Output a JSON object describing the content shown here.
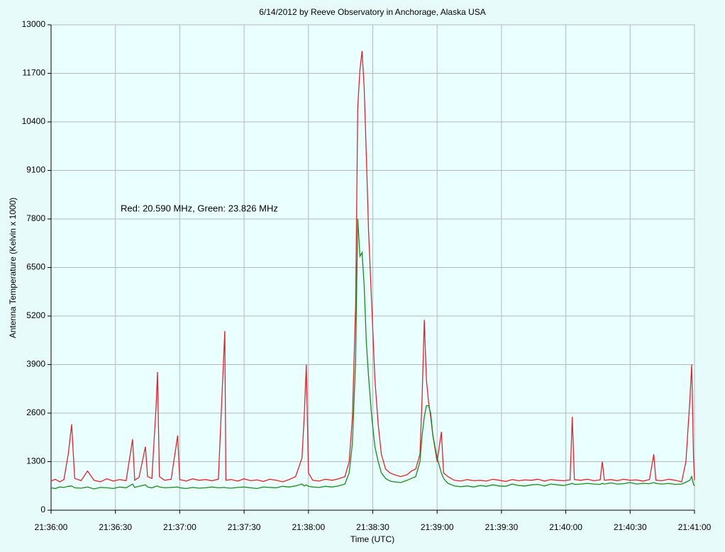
{
  "chart_data": {
    "type": "line",
    "title": "6/14/2012  by  Reeve Observatory  in  Anchorage, Alaska  USA",
    "x_label": "Time (UTC)",
    "y_label": "Antenna Temperature (Kelvin x 1000)",
    "annotation": "Red: 20.590 MHz, Green: 23.826 MHz",
    "x": [
      0,
      2,
      4,
      6,
      8,
      9.6,
      11,
      14,
      17,
      20,
      23,
      26,
      29,
      32,
      35,
      38,
      39,
      41,
      44,
      45,
      47,
      49,
      49.6,
      50.5,
      53,
      56,
      59,
      60,
      63,
      66,
      69,
      72,
      75,
      78,
      81,
      81.5,
      84,
      87,
      90,
      93,
      96,
      99,
      102,
      105,
      108,
      111,
      114,
      117,
      118,
      119,
      120,
      122,
      125,
      128,
      131,
      134,
      137,
      139,
      140.5,
      142,
      143,
      144,
      145,
      146,
      147,
      148,
      149.5,
      151,
      152.5,
      154,
      156,
      158,
      160,
      163,
      166,
      168,
      170,
      172,
      173,
      174,
      175,
      176,
      177,
      178,
      180,
      182,
      183,
      185,
      188,
      191,
      194,
      197,
      200,
      203,
      206,
      209,
      212,
      215,
      218,
      221,
      224,
      227,
      230,
      233,
      236,
      239,
      242,
      243,
      244,
      247,
      250,
      253,
      256,
      257,
      258,
      261,
      264,
      267,
      270,
      273,
      276,
      279,
      281,
      282,
      285,
      288,
      291,
      294,
      296,
      297.8,
      298.7,
      299.5,
      300
    ],
    "series": [
      {
        "name": "Red",
        "color": "#e8202a",
        "values": [
          780,
          830,
          760,
          820,
          1500,
          2300,
          850,
          790,
          1050,
          800,
          760,
          840,
          780,
          820,
          790,
          1900,
          800,
          880,
          1700,
          900,
          850,
          2800,
          3700,
          900,
          800,
          830,
          2000,
          820,
          780,
          840,
          800,
          820,
          790,
          830,
          4800,
          800,
          820,
          780,
          840,
          790,
          810,
          770,
          830,
          800,
          760,
          820,
          900,
          1400,
          2500,
          3900,
          1000,
          800,
          780,
          830,
          800,
          840,
          900,
          1300,
          2500,
          5500,
          10800,
          11800,
          12300,
          11300,
          9500,
          7500,
          5500,
          3500,
          2300,
          1500,
          1100,
          1000,
          950,
          900,
          950,
          1050,
          1100,
          1500,
          3000,
          5100,
          3500,
          2900,
          2500,
          2000,
          1300,
          2100,
          1000,
          900,
          800,
          780,
          820,
          790,
          800,
          780,
          830,
          800,
          770,
          820,
          790,
          810,
          800,
          830,
          780,
          820,
          800,
          790,
          810,
          2500,
          820,
          800,
          830,
          790,
          810,
          1300,
          800,
          820,
          790,
          830,
          800,
          810,
          780,
          820,
          1500,
          800,
          790,
          830,
          800,
          760,
          1300,
          2900,
          3900,
          1500,
          800
        ]
      },
      {
        "name": "Green",
        "color": "#1a8a1a",
        "values": [
          600,
          580,
          620,
          610,
          640,
          650,
          600,
          590,
          620,
          570,
          610,
          600,
          580,
          620,
          600,
          700,
          610,
          640,
          680,
          620,
          600,
          640,
          650,
          620,
          600,
          610,
          620,
          600,
          580,
          610,
          590,
          600,
          620,
          600,
          610,
          600,
          590,
          610,
          620,
          600,
          580,
          620,
          610,
          600,
          640,
          620,
          650,
          700,
          650,
          680,
          640,
          620,
          610,
          640,
          620,
          650,
          700,
          1000,
          1800,
          4000,
          7800,
          6800,
          6900,
          6000,
          4500,
          3600,
          2500,
          1700,
          1300,
          1000,
          850,
          780,
          760,
          740,
          800,
          850,
          900,
          1300,
          2000,
          2500,
          2800,
          2800,
          2600,
          2000,
          1400,
          1000,
          850,
          720,
          650,
          630,
          650,
          620,
          660,
          640,
          680,
          650,
          640,
          700,
          660,
          650,
          680,
          690,
          650,
          700,
          680,
          660,
          700,
          720,
          690,
          700,
          720,
          700,
          690,
          720,
          700,
          730,
          700,
          710,
          740,
          700,
          720,
          710,
          740,
          720,
          700,
          720,
          690,
          700,
          750,
          800,
          900,
          700,
          650
        ]
      }
    ],
    "xlim": [
      0,
      300
    ],
    "xticks": [
      {
        "value": 0,
        "label": "21:36:00"
      },
      {
        "value": 30,
        "label": "21:36:30"
      },
      {
        "value": 60,
        "label": "21:37:00"
      },
      {
        "value": 90,
        "label": "21:37:30"
      },
      {
        "value": 120,
        "label": "21:38:00"
      },
      {
        "value": 150,
        "label": "21:38:30"
      },
      {
        "value": 180,
        "label": "21:39:00"
      },
      {
        "value": 210,
        "label": "21:39:30"
      },
      {
        "value": 240,
        "label": "21:40:00"
      },
      {
        "value": 270,
        "label": "21:40:30"
      },
      {
        "value": 300,
        "label": "21:41:00"
      }
    ],
    "ylim": [
      0,
      13000
    ],
    "yticks": [
      0,
      1300,
      2600,
      3900,
      5200,
      6500,
      7800,
      9100,
      10400,
      11700,
      13000
    ],
    "grid": true
  }
}
